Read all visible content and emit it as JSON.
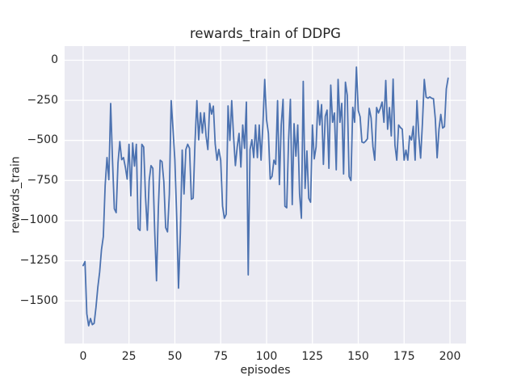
{
  "figure": {
    "title": "rewards_train of DDPG",
    "xlabel": "episodes",
    "ylabel": "rewards_train"
  },
  "chart_data": {
    "type": "line",
    "title": "rewards_train of DDPG",
    "xlabel": "episodes",
    "ylabel": "rewards_train",
    "x_description": "episode index; x value equals array index 0..199",
    "series": [
      {
        "name": "rewards_train",
        "values": [
          -1280,
          -1255,
          -1580,
          -1655,
          -1610,
          -1648,
          -1640,
          -1540,
          -1415,
          -1320,
          -1180,
          -1100,
          -780,
          -607,
          -745,
          -270,
          -623,
          -926,
          -950,
          -640,
          -507,
          -620,
          -607,
          -666,
          -741,
          -524,
          -845,
          -516,
          -660,
          -524,
          -1050,
          -1061,
          -524,
          -541,
          -850,
          -1060,
          -750,
          -657,
          -674,
          -1061,
          -1375,
          -925,
          -623,
          -633,
          -758,
          -1044,
          -1070,
          -834,
          -252,
          -430,
          -620,
          -976,
          -1421,
          -1078,
          -560,
          -834,
          -557,
          -524,
          -549,
          -867,
          -859,
          -507,
          -252,
          -496,
          -328,
          -454,
          -328,
          -471,
          -557,
          -269,
          -336,
          -286,
          -523,
          -623,
          -556,
          -623,
          -909,
          -985,
          -960,
          -285,
          -500,
          -252,
          -472,
          -657,
          -541,
          -456,
          -666,
          -404,
          -549,
          -261,
          -1338,
          -557,
          -496,
          -607,
          -404,
          -607,
          -404,
          -623,
          -404,
          -120,
          -371,
          -456,
          -741,
          -724,
          -623,
          -649,
          -252,
          -775,
          -404,
          -244,
          -910,
          -920,
          -500,
          -244,
          -900,
          -396,
          -598,
          -404,
          -833,
          -985,
          -132,
          -799,
          -566,
          -861,
          -885,
          -404,
          -615,
          -541,
          -252,
          -404,
          -277,
          -649,
          -350,
          -311,
          -674,
          -155,
          -387,
          -329,
          -683,
          -120,
          -387,
          -269,
          -709,
          -137,
          -218,
          -725,
          -750,
          -294,
          -387,
          -43,
          -314,
          -353,
          -510,
          -515,
          -505,
          -490,
          -300,
          -360,
          -539,
          -623,
          -295,
          -329,
          -300,
          -261,
          -387,
          -126,
          -430,
          -295,
          -472,
          -118,
          -530,
          -623,
          -404,
          -420,
          -430,
          -623,
          -561,
          -623,
          -472,
          -497,
          -412,
          -623,
          -252,
          -470,
          -610,
          -390,
          -120,
          -230,
          -237,
          -229,
          -237,
          -240,
          -364,
          -608,
          -431,
          -338,
          -423,
          -414,
          -179,
          -112
        ]
      }
    ],
    "xlim": [
      -10.1,
      208.8
    ],
    "ylim": [
      -1766,
      88
    ],
    "xticks": [
      0,
      25,
      50,
      75,
      100,
      125,
      150,
      175,
      200
    ],
    "yticks": [
      0,
      -250,
      -500,
      -750,
      -1000,
      -1250,
      -1500
    ],
    "xtick_labels": [
      "0",
      "25",
      "50",
      "75",
      "100",
      "125",
      "150",
      "175",
      "200"
    ],
    "ytick_labels": [
      "0",
      "−250",
      "−500",
      "−750",
      "−1000",
      "−1250",
      "−1500"
    ],
    "grid": true,
    "legend_position": "none",
    "line_color": "#4c72b0",
    "line_width": 1.8,
    "plot_bg_color": "#eaeaf2",
    "grid_color": "#ffffff",
    "text_color": "#262626",
    "figure_bg_color": "#ffffff"
  }
}
